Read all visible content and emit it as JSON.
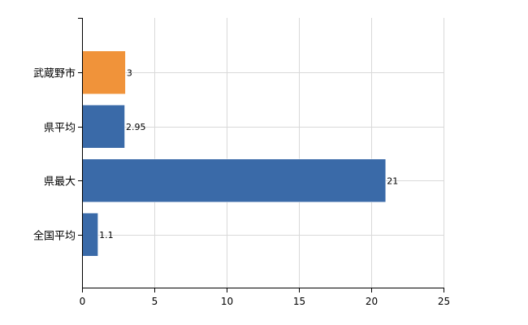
{
  "chart_data": {
    "type": "bar",
    "orientation": "horizontal",
    "categories": [
      "武蔵野市",
      "県平均",
      "県最大",
      "全国平均"
    ],
    "values": [
      3,
      2.95,
      21,
      1.1
    ],
    "value_labels": [
      "3",
      "2.95",
      "21",
      "1.1"
    ],
    "colors": [
      "#f0933a",
      "#3a6aa8",
      "#3a6aa8",
      "#3a6aa8"
    ],
    "xlim": [
      0,
      25
    ],
    "xticks": [
      0,
      5,
      10,
      15,
      20,
      25
    ],
    "grid": true,
    "title": "",
    "xlabel": "",
    "ylabel": ""
  }
}
